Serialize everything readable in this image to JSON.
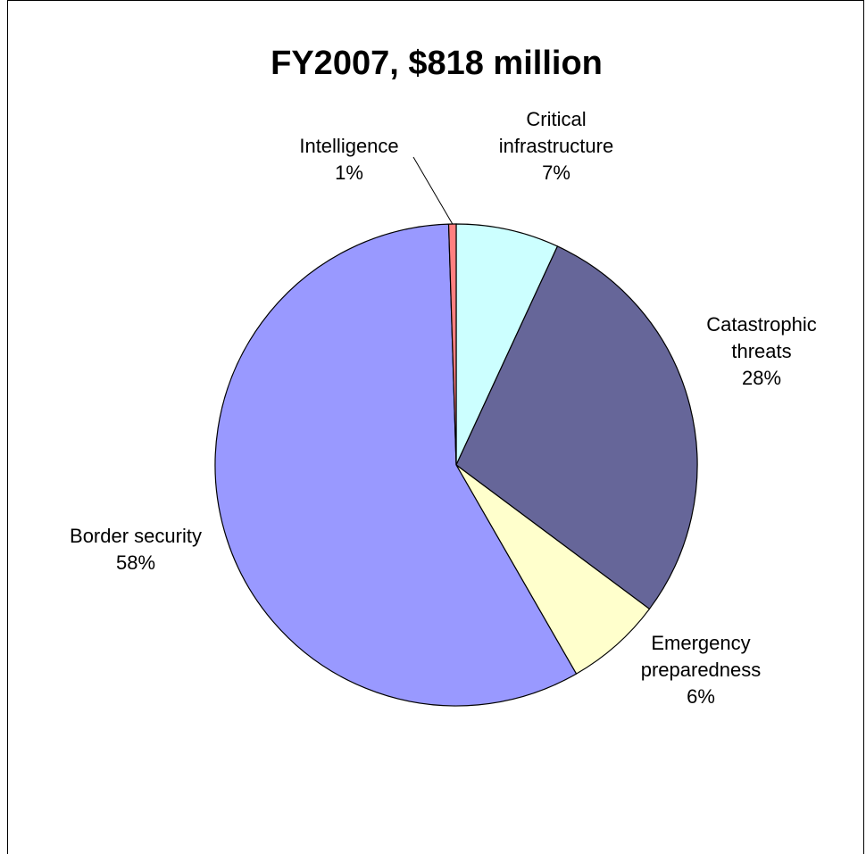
{
  "chart_data": {
    "type": "pie",
    "title": "FY2007, $818 million",
    "start_angle_deg": 0,
    "direction": "clockwise",
    "slices": [
      {
        "name": "Critical infrastructure",
        "name_lines": [
          "Critical",
          "infrastructure"
        ],
        "label": "7%",
        "value": 6.9,
        "color": "#CCFFFF"
      },
      {
        "name": "Catastrophic threats",
        "name_lines": [
          "Catastrophic",
          "threats"
        ],
        "label": "28%",
        "value": 28.3,
        "color": "#666699"
      },
      {
        "name": "Emergency preparedness",
        "name_lines": [
          "Emergency",
          "preparedness"
        ],
        "label": "6%",
        "value": 6.5,
        "color": "#FFFFCC"
      },
      {
        "name": "Border security",
        "name_lines": [
          "Border security"
        ],
        "label": "58%",
        "value": 57.8,
        "color": "#9999FF"
      },
      {
        "name": "Intelligence",
        "name_lines": [
          "Intelligence"
        ],
        "label": "1%",
        "value": 0.5,
        "color": "#FF8080"
      }
    ],
    "legend": "none",
    "leader_line_for": "Intelligence"
  }
}
